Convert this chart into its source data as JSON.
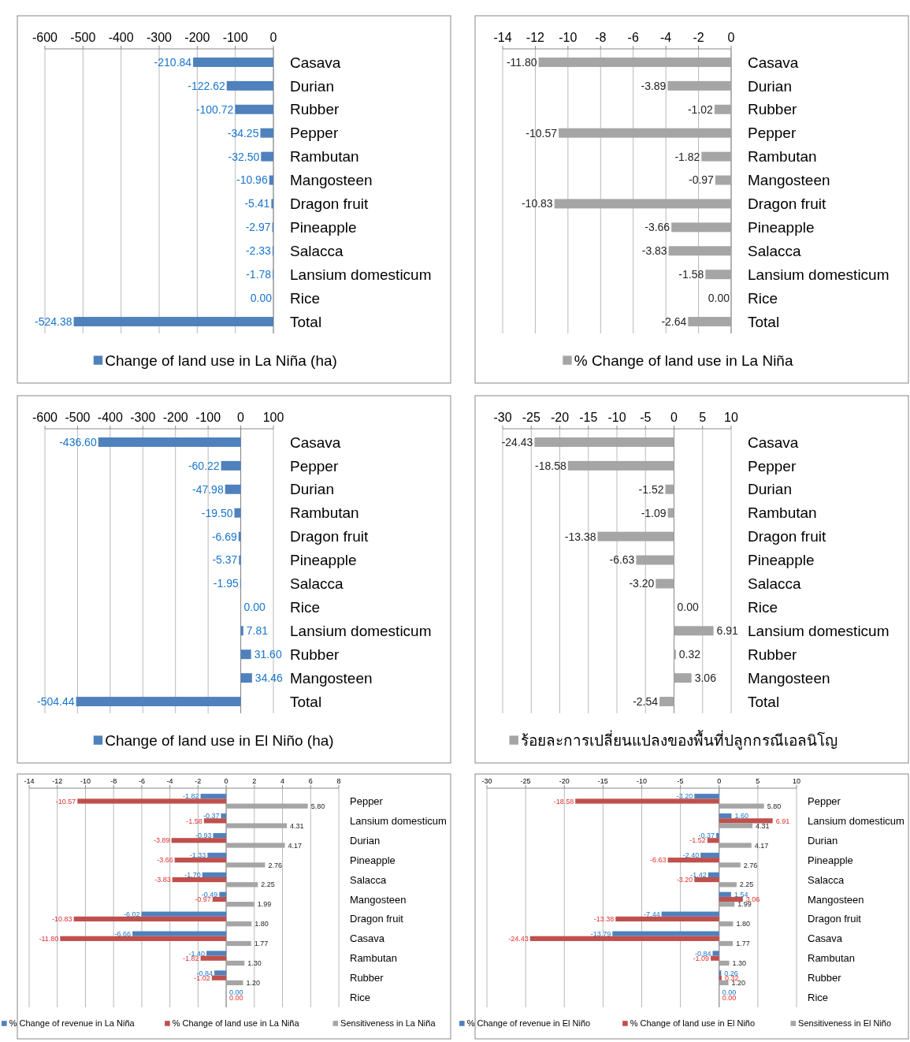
{
  "chart_data": [
    {
      "type": "bar",
      "orientation": "horizontal",
      "categories": [
        "Casava",
        "Durian",
        "Rubber",
        "Pepper",
        "Rambutan",
        "Mangosteen",
        "Dragon fruit",
        "Pineapple",
        "Salacca",
        "Lansium domesticum",
        "Rice",
        "Total"
      ],
      "xlim": [
        -600,
        0
      ],
      "xticks": [
        -600,
        -500,
        -400,
        -300,
        -200,
        -100,
        0
      ],
      "grid": "x",
      "legend": "bottom",
      "series": [
        {
          "name": "Change of land use in La Niña (ha)",
          "color": "#4f81bd",
          "values": [
            -210.84,
            -122.62,
            -100.72,
            -34.25,
            -32.5,
            -10.96,
            -5.41,
            -2.97,
            -2.33,
            -1.78,
            0,
            -524.38
          ],
          "value_labels": [
            "-210.84",
            "-122.62",
            "-100.72",
            "-34.25",
            "-32.50",
            "-10.96",
            "-5.41",
            "-2.97",
            "-2.33",
            "-1.78",
            "0.00",
            "-524.38"
          ]
        }
      ]
    },
    {
      "type": "bar",
      "orientation": "horizontal",
      "categories": [
        "Casava",
        "Durian",
        "Rubber",
        "Pepper",
        "Rambutan",
        "Mangosteen",
        "Dragon fruit",
        "Pineapple",
        "Salacca",
        "Lansium domesticum",
        "Rice",
        "Total"
      ],
      "xlim": [
        -14,
        0
      ],
      "xticks": [
        -14,
        -12,
        -10,
        -8,
        -6,
        -4,
        -2,
        0
      ],
      "grid": "x",
      "legend": "bottom",
      "series": [
        {
          "name": "% Change of land use in La Niña",
          "color": "#a5a5a5",
          "values": [
            -11.8,
            -3.89,
            -1.02,
            -10.57,
            -1.82,
            -0.97,
            -10.83,
            -3.66,
            -3.83,
            -1.58,
            0,
            -2.64
          ],
          "value_labels": [
            "-11.80",
            "-3.89",
            "-1.02",
            "-10.57",
            "-1.82",
            "-0.97",
            "-10.83",
            "-3.66",
            "-3.83",
            "-1.58",
            "0.00",
            "-2.64"
          ]
        }
      ]
    },
    {
      "type": "bar",
      "orientation": "horizontal",
      "categories": [
        "Casava",
        "Pepper",
        "Durian",
        "Rambutan",
        "Dragon fruit",
        "Pineapple",
        "Salacca",
        "Rice",
        "Lansium domesticum",
        "Rubber",
        "Mangosteen",
        "Total"
      ],
      "xlim": [
        -600,
        100
      ],
      "xticks": [
        -600,
        -500,
        -400,
        -300,
        -200,
        -100,
        0,
        100
      ],
      "grid": "x",
      "legend": "bottom",
      "series": [
        {
          "name": "Change of land use in El Niño (ha)",
          "color": "#4f81bd",
          "values": [
            -436.6,
            -60.22,
            -47.98,
            -19.5,
            -6.69,
            -5.37,
            -1.95,
            0,
            7.81,
            31.6,
            34.46,
            -504.44
          ],
          "value_labels": [
            "-436.60",
            "-60.22",
            "-47.98",
            "-19.50",
            "-6.69",
            "-5.37",
            "-1.95",
            "0.00",
            "7.81",
            "31.60",
            "34.46",
            "-504.44"
          ]
        }
      ]
    },
    {
      "type": "bar",
      "orientation": "horizontal",
      "categories": [
        "Casava",
        "Pepper",
        "Durian",
        "Rambutan",
        "Dragon fruit",
        "Pineapple",
        "Salacca",
        "Rice",
        "Lansium domesticum",
        "Rubber",
        "Mangosteen",
        "Total"
      ],
      "xlim": [
        -30,
        10
      ],
      "xticks": [
        -30,
        -25,
        -20,
        -15,
        -10,
        -5,
        0,
        5,
        10
      ],
      "grid": "x",
      "legend": "bottom",
      "series": [
        {
          "name": "ร้อยละการเปลี่ยนแปลงของพื้นที่ปลูกกรณีเอลนิโญ",
          "color": "#a5a5a5",
          "values": [
            -24.43,
            -18.58,
            -1.52,
            -1.09,
            -13.38,
            -6.63,
            -3.2,
            0,
            6.91,
            0.32,
            3.06,
            -2.54
          ],
          "value_labels": [
            "-24.43",
            "-18.58",
            "-1.52",
            "-1.09",
            "-13.38",
            "-6.63",
            "-3.20",
            "0.00",
            "6.91",
            "0.32",
            "3.06",
            "-2.54"
          ]
        }
      ]
    },
    {
      "type": "bar",
      "orientation": "horizontal",
      "categories": [
        "Pepper",
        "Lansium domesticum",
        "Durian",
        "Pineapple",
        "Salacca",
        "Mangosteen",
        "Dragon fruit",
        "Casava",
        "Rambutan",
        "Rubber",
        "Rice"
      ],
      "xlim": [
        -14,
        8
      ],
      "xticks": [
        -14,
        -12,
        -10,
        -8,
        -6,
        -4,
        -2,
        0,
        2,
        4,
        6,
        8
      ],
      "grid": "x",
      "legend": "bottom",
      "series": [
        {
          "name": "% Change of revenue in La Niña",
          "color": "#4f81bd",
          "values": [
            -1.82,
            -0.37,
            -0.93,
            -1.33,
            -1.7,
            -0.49,
            -6.02,
            -6.66,
            -1.4,
            -0.84,
            0
          ],
          "value_labels": [
            "-1.82",
            "-0.37",
            "-0.93",
            "-1.33",
            "-1.70",
            "-0.49",
            "-6.02",
            "-6.66",
            "-1.40",
            "-0.84",
            "0.00"
          ]
        },
        {
          "name": "% Change of land use in La Niña",
          "color": "#c0504d",
          "values": [
            -10.57,
            -1.58,
            -3.89,
            -3.66,
            -3.83,
            -0.97,
            -10.83,
            -11.8,
            -1.82,
            -1.02,
            0
          ],
          "value_labels": [
            "-10.57",
            "-1.58",
            "-3.89",
            "-3.66",
            "-3.83",
            "-0.97",
            "-10.83",
            "-11.80",
            "-1.82",
            "-1.02",
            "0.00"
          ]
        },
        {
          "name": "Sensitiveness in La Niña",
          "color": "#a5a5a5",
          "values": [
            5.8,
            4.31,
            4.17,
            2.76,
            2.25,
            1.99,
            1.8,
            1.77,
            1.3,
            1.2,
            null
          ],
          "value_labels": [
            "5.80",
            "4.31",
            "4.17",
            "2.76",
            "2.25",
            "1.99",
            "1.80",
            "1.77",
            "1.30",
            "1.20",
            null
          ]
        }
      ]
    },
    {
      "type": "bar",
      "orientation": "horizontal",
      "categories": [
        "Pepper",
        "Lansium domesticum",
        "Durian",
        "Pineapple",
        "Salacca",
        "Mangosteen",
        "Dragon fruit",
        "Casava",
        "Rambutan",
        "Rubber",
        "Rice"
      ],
      "xlim": [
        -30,
        10
      ],
      "xticks": [
        -30,
        -25,
        -20,
        -15,
        -10,
        -5,
        0,
        5,
        10
      ],
      "grid": "x",
      "legend": "bottom",
      "series": [
        {
          "name": "% Change of revenue in El Niño",
          "color": "#4f81bd",
          "values": [
            -3.2,
            1.6,
            -0.37,
            -2.4,
            -1.42,
            1.54,
            -7.44,
            -13.79,
            -0.84,
            0.26,
            0
          ],
          "value_labels": [
            "-3.20",
            "1.60",
            "-0.37",
            "-2.40",
            "-1.42",
            "1.54",
            "-7.44",
            "-13.79",
            "-0.84",
            "0.26",
            "0.00"
          ]
        },
        {
          "name": "% Change of land use in El Niño",
          "color": "#c0504d",
          "values": [
            -18.58,
            6.91,
            -1.52,
            -6.63,
            -3.2,
            3.06,
            -13.38,
            -24.43,
            -1.09,
            0.32,
            0
          ],
          "value_labels": [
            "-18.58",
            "6.91",
            "-1.52",
            "-6.63",
            "-3.20",
            "3.06",
            "-13.38",
            "-24.43",
            "-1.09",
            "0.32",
            "0.00"
          ]
        },
        {
          "name": "Sensitiveness in El Niño",
          "color": "#a5a5a5",
          "values": [
            5.8,
            4.31,
            4.17,
            2.76,
            2.25,
            1.99,
            1.8,
            1.77,
            1.3,
            1.2,
            null
          ],
          "value_labels": [
            "5.80",
            "4.31",
            "4.17",
            "2.76",
            "2.25",
            "1.99",
            "1.80",
            "1.77",
            "1.30",
            "1.20",
            null
          ]
        }
      ]
    }
  ]
}
